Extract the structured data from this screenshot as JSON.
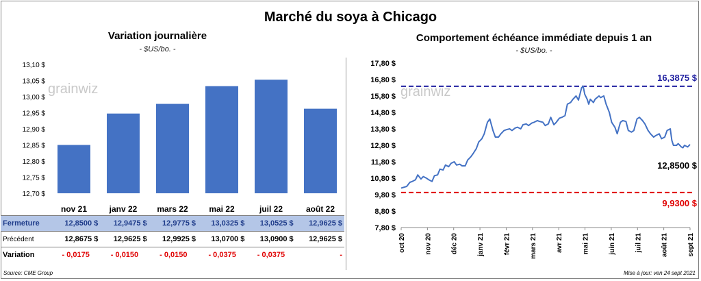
{
  "title": "Marché du soya à Chicago",
  "left": {
    "subtitle": "Variation  journalière",
    "unit": "- $US/bo. -",
    "watermark": "grainwiz"
  },
  "right": {
    "subtitle": "Comportement  échéance immédiate depuis 1 an",
    "unit": "- $US/bo. -",
    "watermark": "grainwiz",
    "high_label": "16,3875 $",
    "low_label": "9,9300 $",
    "last_label": "12,8500 $"
  },
  "table": {
    "row_close_label": "Fermeture",
    "row_prev_label": "Précédent",
    "row_var_label": "Variation",
    "close": [
      "12,8500  $",
      "12,9475  $",
      "12,9775  $",
      "13,0325  $",
      "13,0525  $",
      "12,9625  $"
    ],
    "prev": [
      "12,8675  $",
      "12,9625  $",
      "12,9925  $",
      "13,0700  $",
      "13,0900  $",
      "12,9625  $"
    ],
    "var": [
      "- 0,0175",
      "- 0,0150",
      "- 0,0150",
      "- 0,0375",
      "- 0,0375",
      "-"
    ]
  },
  "footer": {
    "source": "Source: CME Group",
    "updated": "Mise à jour: ven 24 sept 2021"
  },
  "colors": {
    "bar": "#4472c4",
    "line": "#4472c4",
    "high": "#1f1fa0",
    "low": "#e00000",
    "row_fill": "#b4c6e7"
  },
  "chart_data": [
    {
      "type": "bar",
      "title": "Variation  journalière",
      "categories": [
        "nov 21",
        "janv 22",
        "mars 22",
        "mai 22",
        "juil 22",
        "août 22"
      ],
      "values": [
        12.85,
        12.9475,
        12.9775,
        13.0325,
        13.0525,
        12.9625
      ],
      "ylim": [
        12.7,
        13.1
      ],
      "yticks": [
        "12,70 $",
        "12,75 $",
        "12,80 $",
        "12,85 $",
        "12,90 $",
        "12,95 $",
        "13,00 $",
        "13,05 $",
        "13,10 $"
      ],
      "grid": false
    },
    {
      "type": "line",
      "title": "Comportement  échéance immédiate depuis 1 an",
      "x_ticks": [
        "oct 20",
        "nov 20",
        "déc 20",
        "janv 21",
        "févr 21",
        "mars 21",
        "avr 21",
        "mai 21",
        "juin 21",
        "juil 21",
        "août 21",
        "sept 21"
      ],
      "yticks": [
        "7,80 $",
        "8,80 $",
        "9,80 $",
        "10,80 $",
        "11,80 $",
        "12,80 $",
        "13,80 $",
        "14,80 $",
        "15,80 $",
        "16,80 $",
        "17,80 $"
      ],
      "ylim": [
        7.8,
        17.8
      ],
      "x_range": [
        "2020-09-24",
        "2021-09-24"
      ],
      "reference_lines": [
        {
          "value": 16.3875,
          "label": "16,3875 $",
          "color": "#1f1fa0"
        },
        {
          "value": 9.93,
          "label": "9,9300 $",
          "color": "#e00000"
        }
      ],
      "last_value": 12.85,
      "series": [
        {
          "values": [
            [
              "2020-09-24",
              10.2
            ],
            [
              "2020-10-01",
              10.3
            ],
            [
              "2020-10-05",
              10.55
            ],
            [
              "2020-10-08",
              10.6
            ],
            [
              "2020-10-12",
              10.7
            ],
            [
              "2020-10-15",
              11.0
            ],
            [
              "2020-10-19",
              10.75
            ],
            [
              "2020-10-22",
              10.9
            ],
            [
              "2020-10-26",
              10.8
            ],
            [
              "2020-10-29",
              10.7
            ],
            [
              "2020-11-02",
              10.6
            ],
            [
              "2020-11-05",
              10.95
            ],
            [
              "2020-11-09",
              11.0
            ],
            [
              "2020-11-12",
              11.35
            ],
            [
              "2020-11-16",
              11.3
            ],
            [
              "2020-11-19",
              11.6
            ],
            [
              "2020-11-23",
              11.5
            ],
            [
              "2020-11-26",
              11.7
            ],
            [
              "2020-11-30",
              11.8
            ],
            [
              "2020-12-03",
              11.6
            ],
            [
              "2020-12-07",
              11.65
            ],
            [
              "2020-12-10",
              11.55
            ],
            [
              "2020-12-14",
              11.55
            ],
            [
              "2020-12-17",
              11.9
            ],
            [
              "2020-12-21",
              12.1
            ],
            [
              "2020-12-24",
              12.3
            ],
            [
              "2020-12-28",
              12.6
            ],
            [
              "2020-12-31",
              13.0
            ],
            [
              "2021-01-04",
              13.2
            ],
            [
              "2021-01-07",
              13.5
            ],
            [
              "2021-01-11",
              14.2
            ],
            [
              "2021-01-14",
              14.4
            ],
            [
              "2021-01-18",
              13.7
            ],
            [
              "2021-01-21",
              13.3
            ],
            [
              "2021-01-25",
              13.3
            ],
            [
              "2021-01-28",
              13.5
            ],
            [
              "2021-02-01",
              13.7
            ],
            [
              "2021-02-04",
              13.75
            ],
            [
              "2021-02-08",
              13.8
            ],
            [
              "2021-02-11",
              13.7
            ],
            [
              "2021-02-15",
              13.85
            ],
            [
              "2021-02-18",
              13.9
            ],
            [
              "2021-02-22",
              13.8
            ],
            [
              "2021-02-25",
              14.05
            ],
            [
              "2021-03-01",
              14.1
            ],
            [
              "2021-03-04",
              14.0
            ],
            [
              "2021-03-08",
              14.15
            ],
            [
              "2021-03-11",
              14.2
            ],
            [
              "2021-03-15",
              14.3
            ],
            [
              "2021-03-18",
              14.25
            ],
            [
              "2021-03-22",
              14.2
            ],
            [
              "2021-03-25",
              14.0
            ],
            [
              "2021-03-29",
              14.1
            ],
            [
              "2021-04-01",
              14.5
            ],
            [
              "2021-04-05",
              14.05
            ],
            [
              "2021-04-08",
              14.2
            ],
            [
              "2021-04-12",
              14.45
            ],
            [
              "2021-04-15",
              14.5
            ],
            [
              "2021-04-19",
              14.6
            ],
            [
              "2021-04-22",
              15.3
            ],
            [
              "2021-04-26",
              15.4
            ],
            [
              "2021-04-29",
              15.6
            ],
            [
              "2021-05-03",
              15.8
            ],
            [
              "2021-05-06",
              15.55
            ],
            [
              "2021-05-10",
              16.3
            ],
            [
              "2021-05-12",
              16.3875
            ],
            [
              "2021-05-14",
              15.9
            ],
            [
              "2021-05-17",
              15.6
            ],
            [
              "2021-05-19",
              15.3
            ],
            [
              "2021-05-21",
              15.6
            ],
            [
              "2021-05-25",
              15.4
            ],
            [
              "2021-05-27",
              15.6
            ],
            [
              "2021-06-01",
              15.8
            ],
            [
              "2021-06-03",
              15.7
            ],
            [
              "2021-06-07",
              15.8
            ],
            [
              "2021-06-10",
              15.3
            ],
            [
              "2021-06-14",
              14.8
            ],
            [
              "2021-06-17",
              14.2
            ],
            [
              "2021-06-21",
              13.9
            ],
            [
              "2021-06-24",
              13.5
            ],
            [
              "2021-06-28",
              14.2
            ],
            [
              "2021-07-01",
              14.3
            ],
            [
              "2021-07-05",
              14.25
            ],
            [
              "2021-07-08",
              13.7
            ],
            [
              "2021-07-12",
              13.6
            ],
            [
              "2021-07-15",
              13.7
            ],
            [
              "2021-07-19",
              14.4
            ],
            [
              "2021-07-22",
              14.5
            ],
            [
              "2021-07-26",
              14.3
            ],
            [
              "2021-07-29",
              14.1
            ],
            [
              "2021-08-02",
              13.7
            ],
            [
              "2021-08-05",
              13.5
            ],
            [
              "2021-08-09",
              13.3
            ],
            [
              "2021-08-12",
              13.4
            ],
            [
              "2021-08-16",
              13.5
            ],
            [
              "2021-08-19",
              13.2
            ],
            [
              "2021-08-23",
              13.3
            ],
            [
              "2021-08-26",
              13.7
            ],
            [
              "2021-08-30",
              13.8
            ],
            [
              "2021-09-01",
              13.1
            ],
            [
              "2021-09-03",
              12.8
            ],
            [
              "2021-09-07",
              12.8
            ],
            [
              "2021-09-09",
              12.9
            ],
            [
              "2021-09-13",
              12.7
            ],
            [
              "2021-09-15",
              12.65
            ],
            [
              "2021-09-17",
              12.8
            ],
            [
              "2021-09-21",
              12.7
            ],
            [
              "2021-09-24",
              12.85
            ]
          ]
        }
      ]
    }
  ]
}
